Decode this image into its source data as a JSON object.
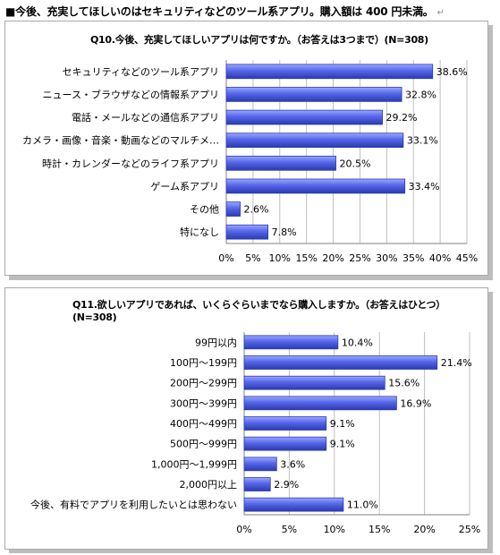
{
  "heading": "■今後、充実してほしいのはセキュリティなどのツール系アプリ。購入額は 400 円未満。",
  "return_mark": "↵",
  "colors": {
    "bar": "#5566e8",
    "bar_dark": "#2b3bb0",
    "bar_light": "#9aa7ff",
    "grid": "#bfbfbf"
  },
  "chart_data": [
    {
      "type": "bar",
      "orientation": "horizontal",
      "title": "Q10.今後、充実してほしいアプリは何ですか。（お答えは3つまで）(N=308)",
      "title_lines": [
        "Q10.今後、充実してほしいアプリは何ですか。（お答えは3つまで）(N=308)"
      ],
      "categories": [
        "セキュリティなどのツール系アプリ",
        "ニュース・ブラウザなどの情報系アプリ",
        "電話・メールなどの通信系アプリ",
        "カメラ・画像・音楽・動画などのマルチメ…",
        "時計・カレンダーなどのライフ系アプリ",
        "ゲーム系アプリ",
        "その他",
        "特になし"
      ],
      "values": [
        38.6,
        32.8,
        29.2,
        33.1,
        20.5,
        33.4,
        2.6,
        7.8
      ],
      "value_labels": [
        "38.6%",
        "32.8%",
        "29.2%",
        "33.1%",
        "20.5%",
        "33.4%",
        "2.6%",
        "7.8%"
      ],
      "xlim": [
        0,
        45
      ],
      "xticks": [
        "0%",
        "5%",
        "10%",
        "15%",
        "20%",
        "25%",
        "30%",
        "35%",
        "40%",
        "45%"
      ],
      "grid": true
    },
    {
      "type": "bar",
      "orientation": "horizontal",
      "title": "Q11.欲しいアプリであれば、いくらぐらいまでなら購入しますか。（お答えはひとつ）(N=308)",
      "title_lines": [
        "Q11.欲しいアプリであれば、いくらぐらいまでなら購入しますか。（お答えはひとつ）",
        "(N=308)"
      ],
      "categories": [
        "99円以内",
        "100円～199円",
        "200円～299円",
        "300円～399円",
        "400円～499円",
        "500円～999円",
        "1,000円～1,999円",
        "2,000円以上",
        "今後、有料でアプリを利用したいとは思わない"
      ],
      "values": [
        10.4,
        21.4,
        15.6,
        16.9,
        9.1,
        9.1,
        3.6,
        2.9,
        11.0
      ],
      "value_labels": [
        "10.4%",
        "21.4%",
        "15.6%",
        "16.9%",
        "9.1%",
        "9.1%",
        "3.6%",
        "2.9%",
        "11.0%"
      ],
      "xlim": [
        0,
        25
      ],
      "xticks": [
        "0%",
        "5%",
        "10%",
        "15%",
        "20%",
        "25%"
      ],
      "grid": true
    }
  ]
}
